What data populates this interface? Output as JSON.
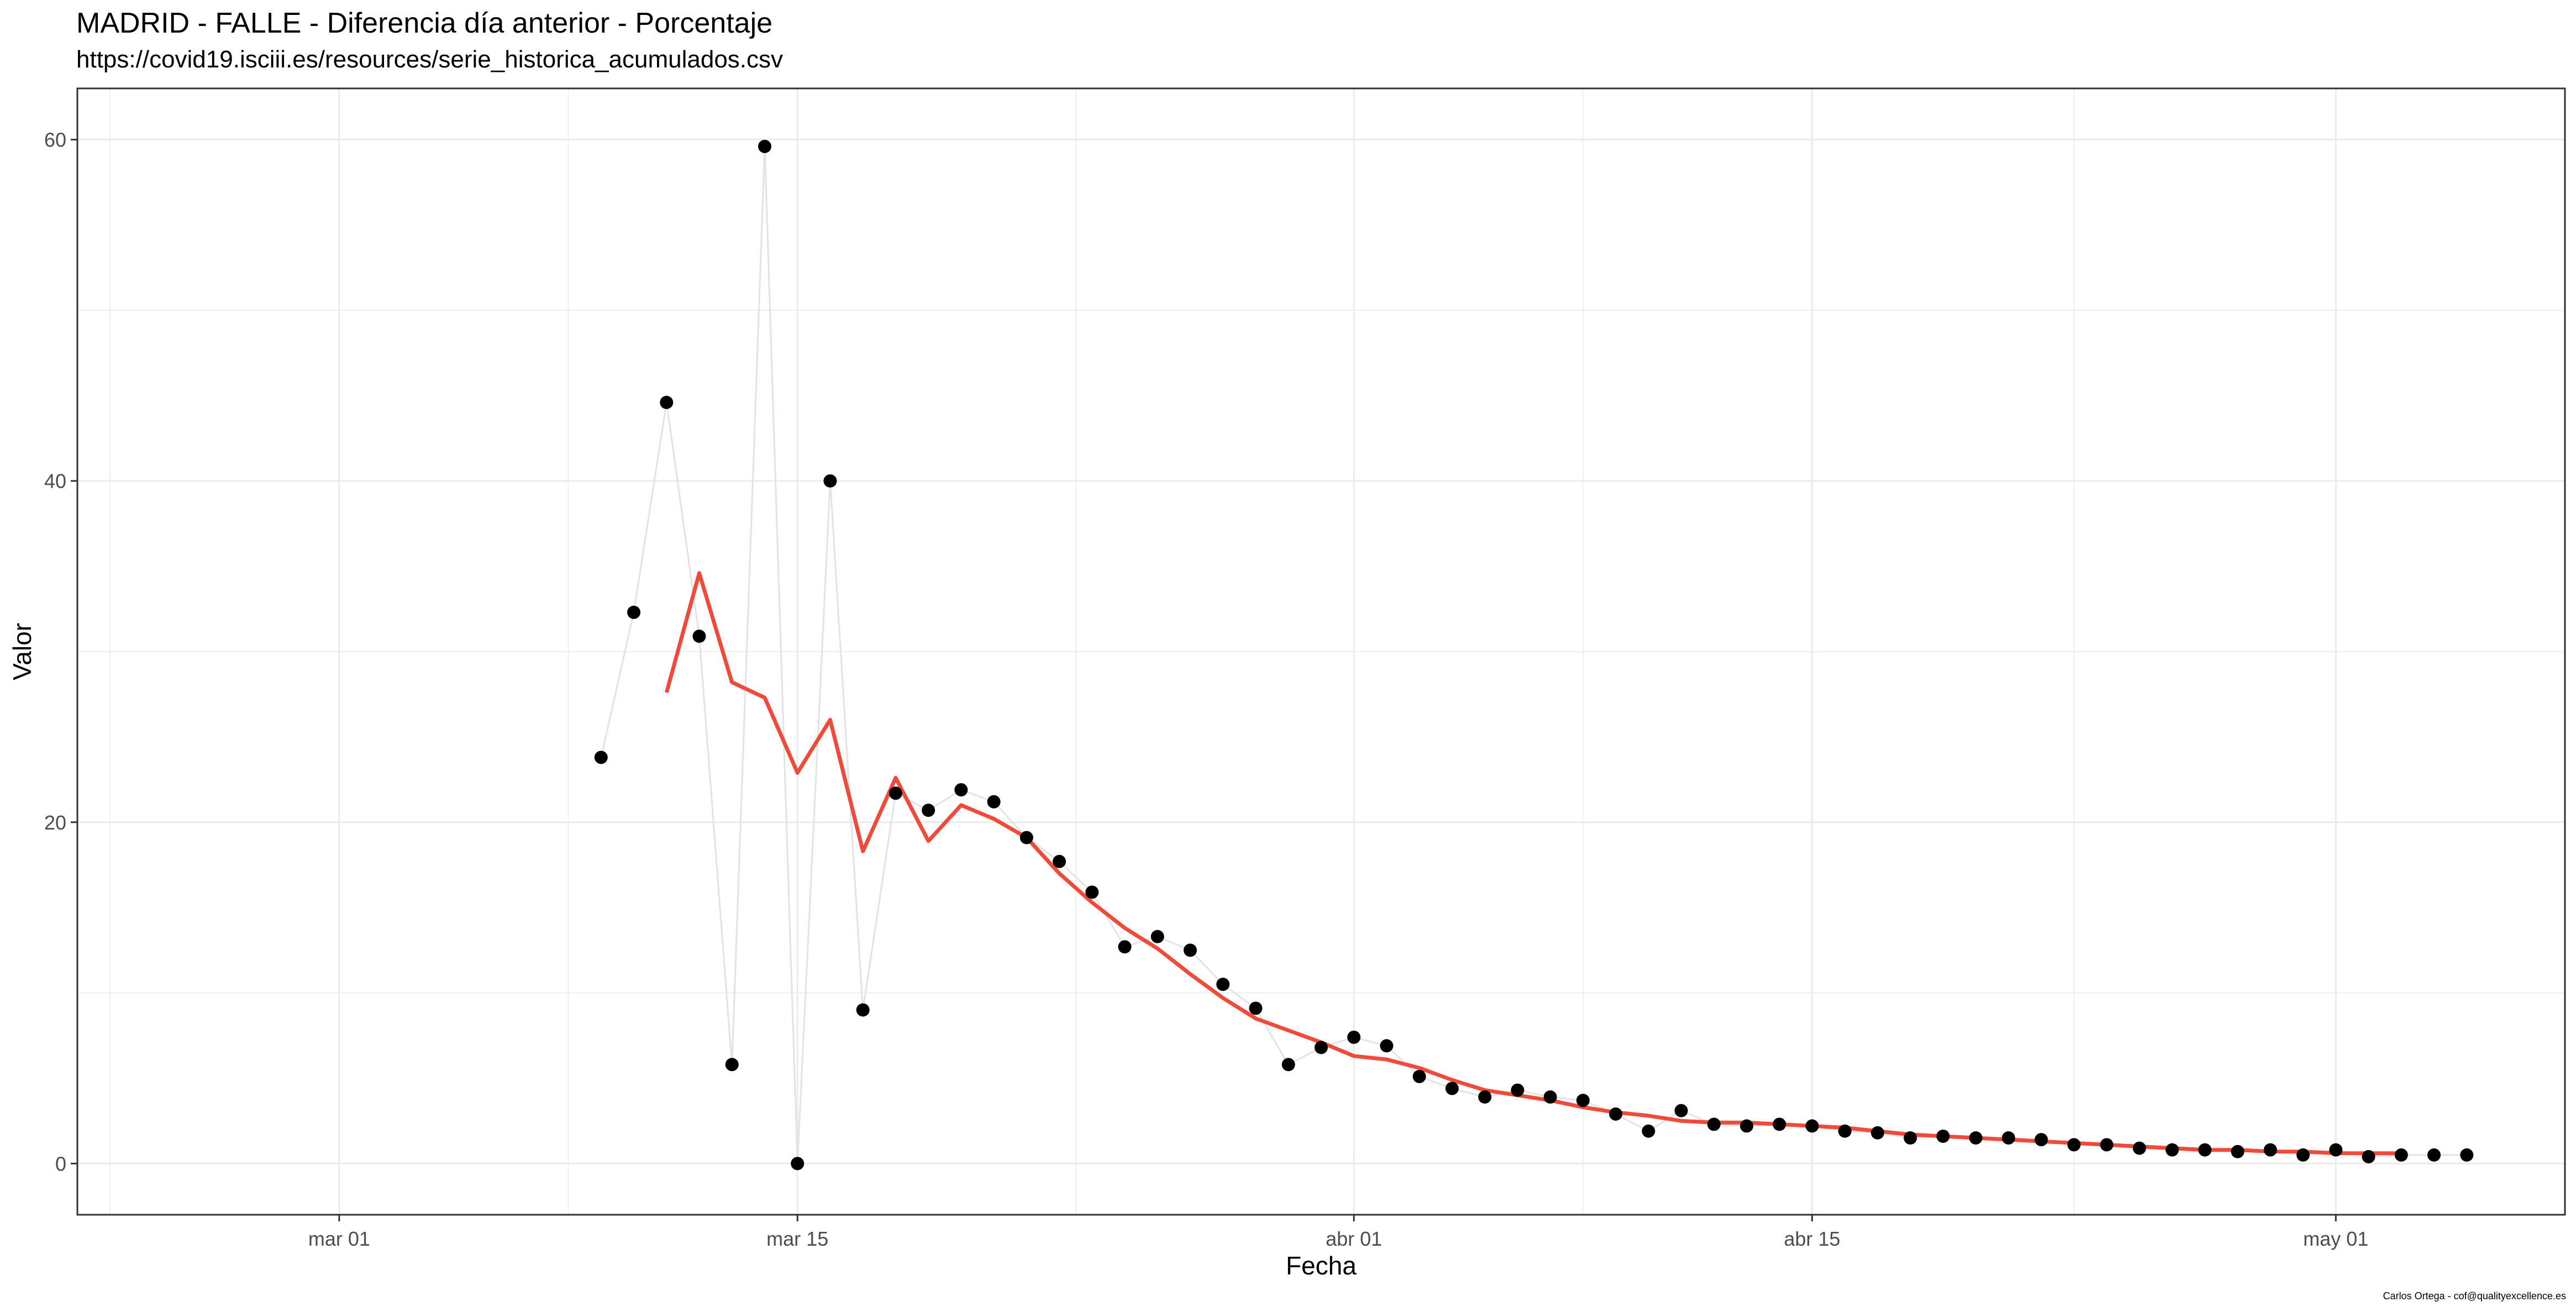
{
  "title": "MADRID - FALLE - Diferencia día anterior - Porcentaje",
  "subtitle": "https://covid19.isciii.es/resources/serie_historica_acumulados.csv",
  "caption": "Carlos Ortega - cof@qualityexcellence.es",
  "colors": {
    "points": "#000000",
    "raw_line": "#e3e3e3",
    "smooth_line": "#f04a3a",
    "grid": "#ebebeb",
    "panel_border": "#333333"
  },
  "chart_data": {
    "type": "line",
    "xlabel": "Fecha",
    "ylabel": "Valor",
    "x_ticks": [
      {
        "date": "2020-03-01",
        "label": "mar 01"
      },
      {
        "date": "2020-03-15",
        "label": "mar 15"
      },
      {
        "date": "2020-04-01",
        "label": "abr 01"
      },
      {
        "date": "2020-04-15",
        "label": "abr 15"
      },
      {
        "date": "2020-05-01",
        "label": "may 01"
      }
    ],
    "y_ticks": [
      0,
      20,
      40,
      60
    ],
    "xlim": [
      "2020-02-22",
      "2020-05-08"
    ],
    "ylim": [
      -3,
      63
    ],
    "grid": true,
    "legend": "none",
    "series": [
      {
        "kind": "points",
        "x": [
          "2020-03-09",
          "2020-03-10",
          "2020-03-11",
          "2020-03-12",
          "2020-03-13",
          "2020-03-14",
          "2020-03-15",
          "2020-03-16",
          "2020-03-17",
          "2020-03-18",
          "2020-03-19",
          "2020-03-20",
          "2020-03-21",
          "2020-03-22",
          "2020-03-23",
          "2020-03-24",
          "2020-03-25",
          "2020-03-26",
          "2020-03-27",
          "2020-03-28",
          "2020-03-29",
          "2020-03-30",
          "2020-03-31",
          "2020-04-01",
          "2020-04-02",
          "2020-04-03",
          "2020-04-04",
          "2020-04-05",
          "2020-04-06",
          "2020-04-07",
          "2020-04-08",
          "2020-04-09",
          "2020-04-10",
          "2020-04-11",
          "2020-04-12",
          "2020-04-13",
          "2020-04-14",
          "2020-04-15",
          "2020-04-16",
          "2020-04-17",
          "2020-04-18",
          "2020-04-19",
          "2020-04-20",
          "2020-04-21",
          "2020-04-22",
          "2020-04-23",
          "2020-04-24",
          "2020-04-25",
          "2020-04-26",
          "2020-04-27",
          "2020-04-28",
          "2020-04-29",
          "2020-04-30",
          "2020-05-01",
          "2020-05-02",
          "2020-05-03",
          "2020-05-04",
          "2020-05-05"
        ],
        "values": [
          23.8,
          32.3,
          44.6,
          30.9,
          5.8,
          59.6,
          0.0,
          40.0,
          9.0,
          21.7,
          20.7,
          21.9,
          21.2,
          19.1,
          17.7,
          15.9,
          12.7,
          13.3,
          12.5,
          10.5,
          9.1,
          5.8,
          6.8,
          7.4,
          6.9,
          5.1,
          4.4,
          3.9,
          4.3,
          3.9,
          3.7,
          2.9,
          1.9,
          3.1,
          2.3,
          2.2,
          2.3,
          2.2,
          1.9,
          1.8,
          1.5,
          1.6,
          1.5,
          1.5,
          1.4,
          1.1,
          1.1,
          0.9,
          0.8,
          0.8,
          0.7,
          0.8,
          0.5,
          0.8,
          0.4,
          0.5,
          0.5,
          0.5
        ]
      },
      {
        "kind": "smooth",
        "x": [
          "2020-03-11",
          "2020-03-12",
          "2020-03-13",
          "2020-03-14",
          "2020-03-15",
          "2020-03-16",
          "2020-03-17",
          "2020-03-18",
          "2020-03-19",
          "2020-03-20",
          "2020-03-21",
          "2020-03-22",
          "2020-03-23",
          "2020-03-24",
          "2020-03-25",
          "2020-03-26",
          "2020-03-27",
          "2020-03-28",
          "2020-03-29",
          "2020-03-30",
          "2020-03-31",
          "2020-04-01",
          "2020-04-02",
          "2020-04-03",
          "2020-04-04",
          "2020-04-05",
          "2020-04-06",
          "2020-04-07",
          "2020-04-08",
          "2020-04-09",
          "2020-04-10",
          "2020-04-11",
          "2020-04-12",
          "2020-04-13",
          "2020-04-14",
          "2020-04-15",
          "2020-04-16",
          "2020-04-17",
          "2020-04-18",
          "2020-04-19",
          "2020-04-20",
          "2020-04-21",
          "2020-04-22",
          "2020-04-23",
          "2020-04-24",
          "2020-04-25",
          "2020-04-26",
          "2020-04-27",
          "2020-04-28",
          "2020-04-29",
          "2020-04-30",
          "2020-05-01",
          "2020-05-02",
          "2020-05-03"
        ],
        "values": [
          27.6,
          34.6,
          28.2,
          27.3,
          22.9,
          26.0,
          18.3,
          22.6,
          18.9,
          21.0,
          20.2,
          19.1,
          17.0,
          15.3,
          13.8,
          12.6,
          11.1,
          9.7,
          8.5,
          7.8,
          7.1,
          6.3,
          6.1,
          5.6,
          4.9,
          4.3,
          4.0,
          3.7,
          3.3,
          3.0,
          2.8,
          2.5,
          2.4,
          2.4,
          2.3,
          2.2,
          2.1,
          1.9,
          1.7,
          1.6,
          1.5,
          1.4,
          1.3,
          1.2,
          1.1,
          1.0,
          0.9,
          0.8,
          0.8,
          0.7,
          0.7,
          0.6,
          0.6,
          0.6
        ]
      }
    ]
  }
}
